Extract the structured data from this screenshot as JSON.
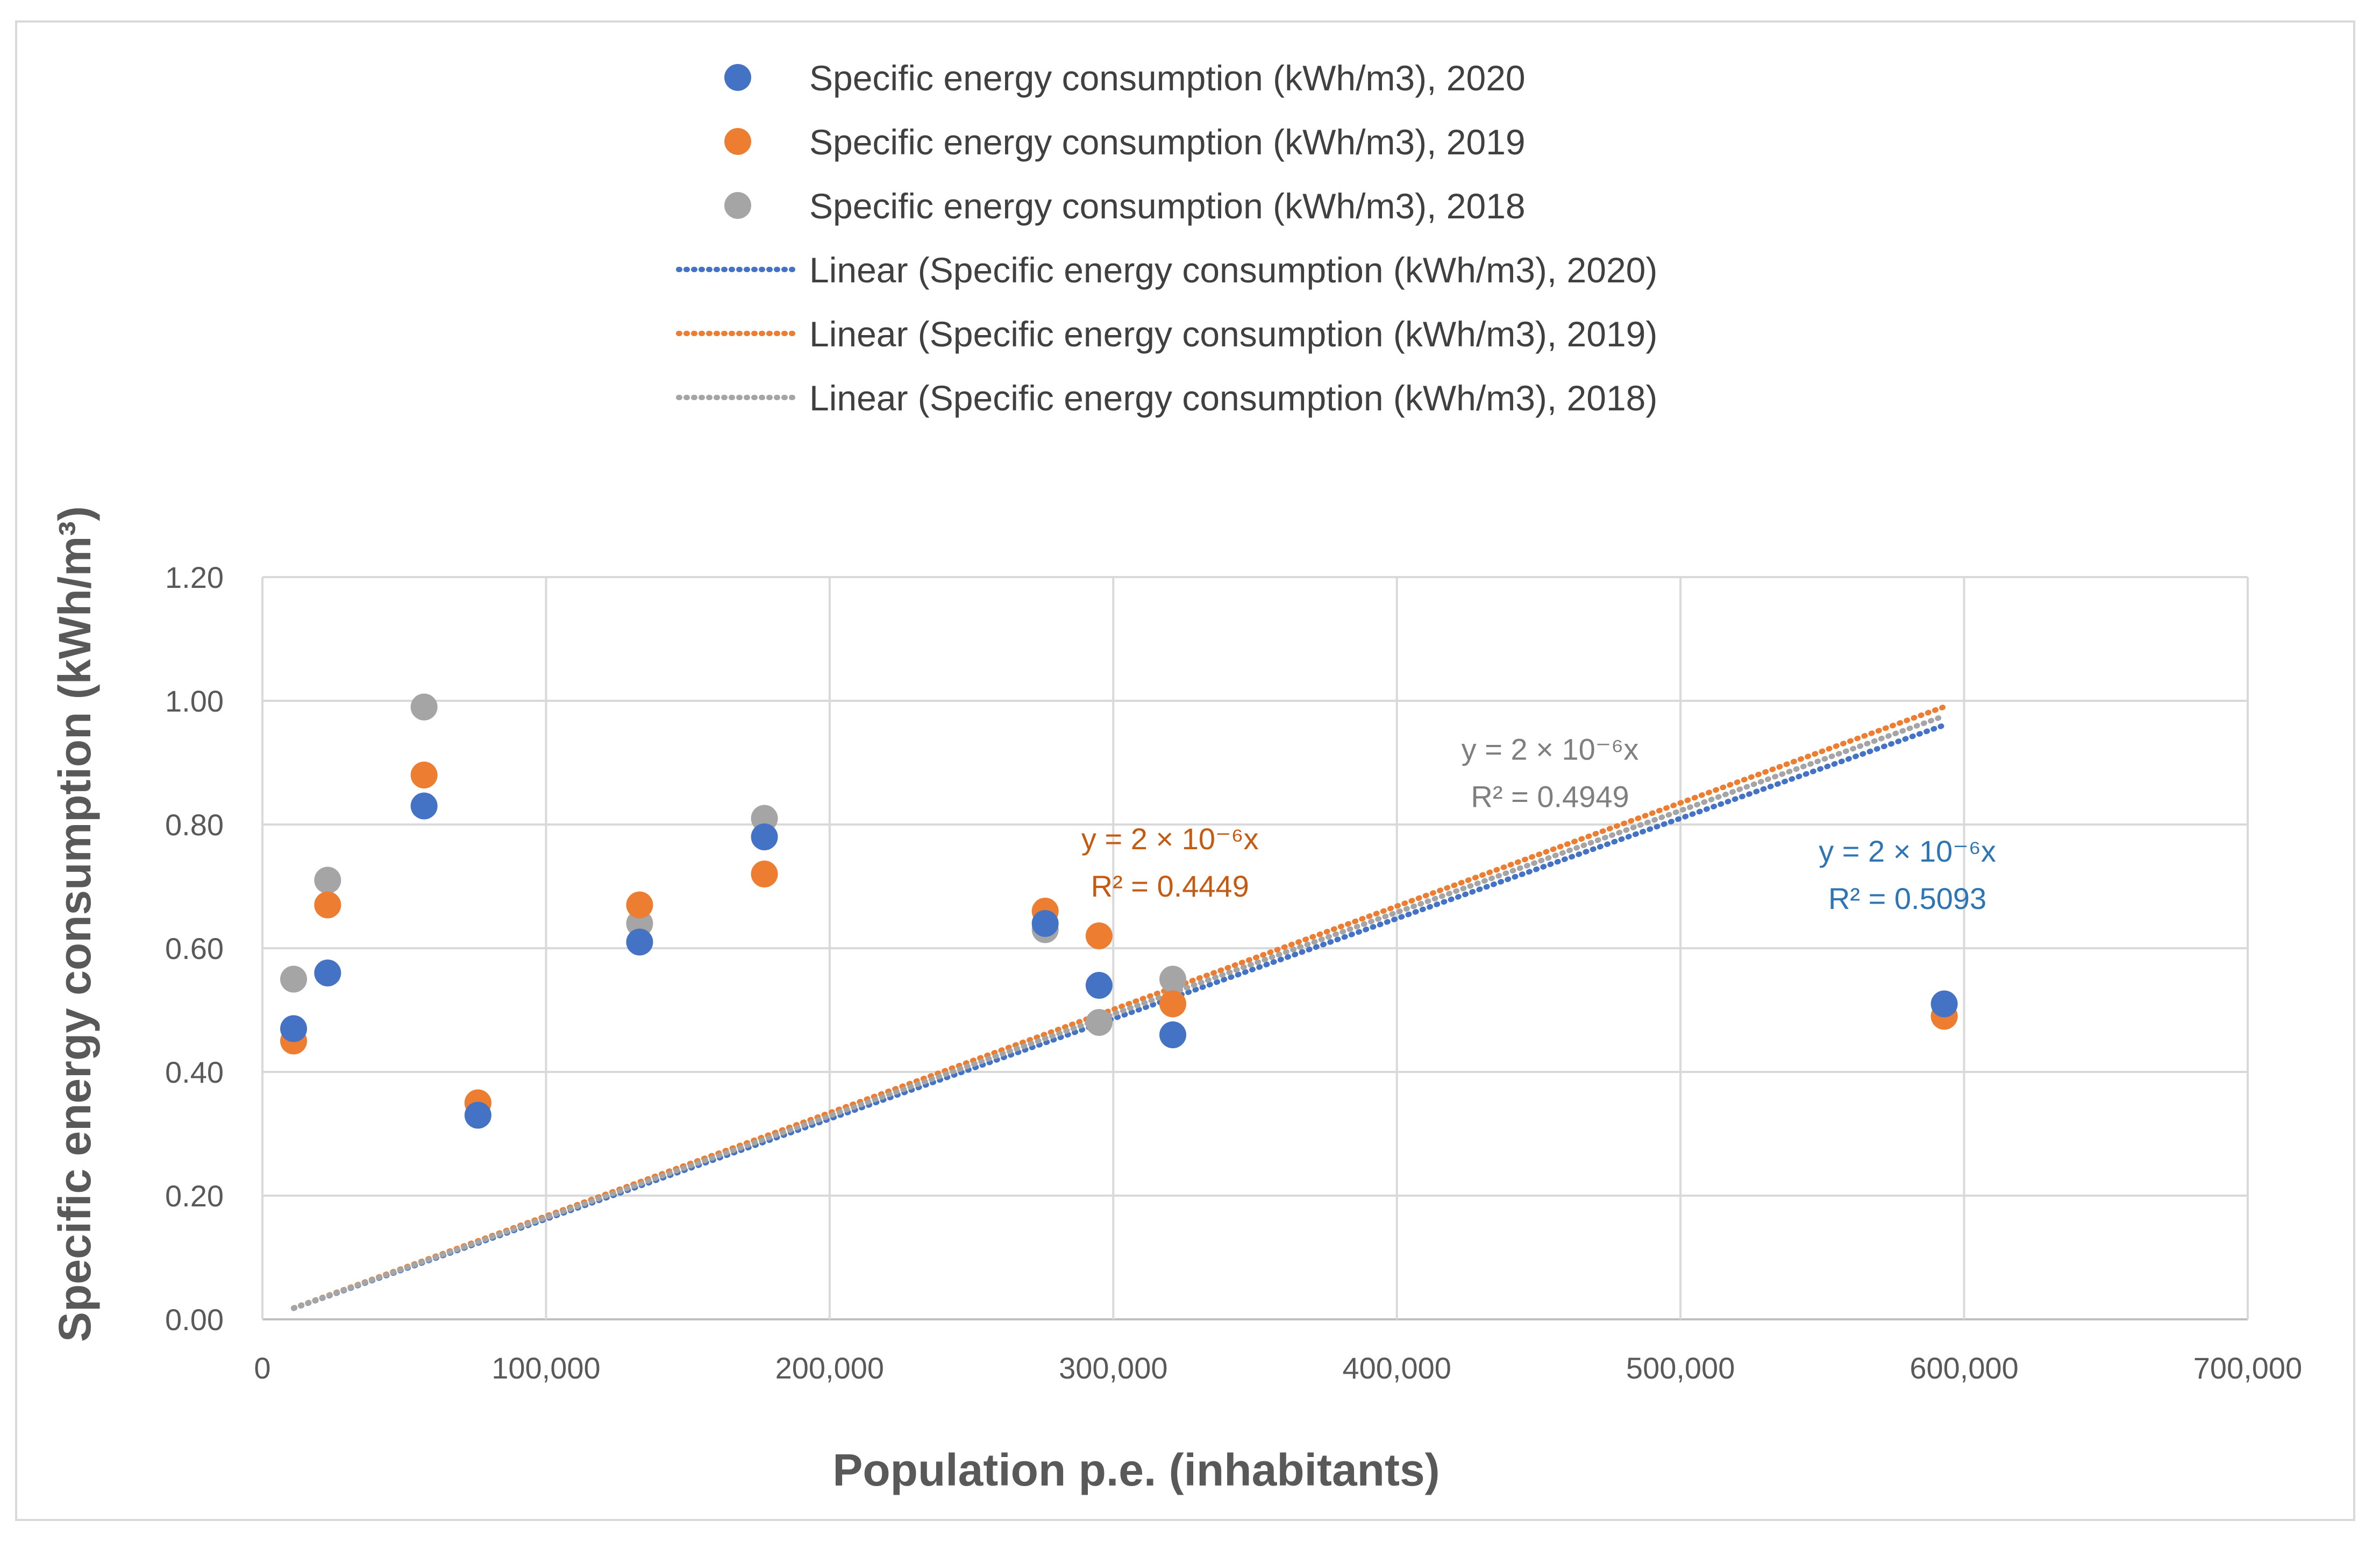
{
  "chart_data": {
    "type": "scatter",
    "title": "",
    "xlabel": "Population p.e. (inhabitants)",
    "ylabel": "Specific energy consumption (kWh/m³)",
    "xlim": [
      0,
      700000
    ],
    "ylim": [
      0,
      1.2
    ],
    "x_ticks": [
      "0",
      "100,000",
      "200,000",
      "300,000",
      "400,000",
      "500,000",
      "600,000",
      "700,000"
    ],
    "y_ticks": [
      "0.00",
      "0.20",
      "0.40",
      "0.60",
      "0.80",
      "1.00",
      "1.20"
    ],
    "grid": true,
    "legend_position": "top",
    "series": [
      {
        "name": "Specific energy consumption (kWh/m3), 2020",
        "color": "#4472c4",
        "points": [
          [
            11000,
            0.47
          ],
          [
            23000,
            0.56
          ],
          [
            57000,
            0.83
          ],
          [
            76000,
            0.33
          ],
          [
            133000,
            0.61
          ],
          [
            177000,
            0.78
          ],
          [
            276000,
            0.64
          ],
          [
            295000,
            0.54
          ],
          [
            321000,
            0.46
          ],
          [
            593000,
            0.51
          ]
        ]
      },
      {
        "name": "Specific energy consumption (kWh/m3), 2019",
        "color": "#ed7d31",
        "points": [
          [
            11000,
            0.45
          ],
          [
            23000,
            0.67
          ],
          [
            57000,
            0.88
          ],
          [
            76000,
            0.35
          ],
          [
            133000,
            0.67
          ],
          [
            177000,
            0.72
          ],
          [
            276000,
            0.66
          ],
          [
            295000,
            0.62
          ],
          [
            321000,
            0.51
          ],
          [
            593000,
            0.49
          ]
        ]
      },
      {
        "name": "Specific energy consumption (kWh/m3), 2018",
        "color": "#a5a5a5",
        "points": [
          [
            11000,
            0.55
          ],
          [
            23000,
            0.71
          ],
          [
            57000,
            0.99
          ],
          [
            76000,
            0.35
          ],
          [
            133000,
            0.64
          ],
          [
            177000,
            0.81
          ],
          [
            276000,
            0.63
          ],
          [
            295000,
            0.48
          ],
          [
            321000,
            0.55
          ],
          [
            593000,
            0.49
          ]
        ]
      }
    ],
    "trendlines": [
      {
        "name": "Linear (Specific energy consumption (kWh/m3), 2020)",
        "color": "#4472c4",
        "x_range": [
          11000,
          593000
        ],
        "slope": 1.62e-06,
        "equation": "y = 2 × 10⁻⁶x",
        "r2": "R² = 0.5093",
        "label_color": "#2e75b6"
      },
      {
        "name": "Linear (Specific energy consumption (kWh/m3), 2019)",
        "color": "#ed7d31",
        "x_range": [
          11000,
          593000
        ],
        "slope": 1.67e-06,
        "equation": "y = 2 × 10⁻⁶x",
        "r2": "R² = 0.4449",
        "label_color": "#c55a11"
      },
      {
        "name": "Linear (Specific energy consumption (kWh/m3), 2018)",
        "color": "#a5a5a5",
        "x_range": [
          11000,
          593000
        ],
        "slope": 1.645e-06,
        "equation": "y = 2 × 10⁻⁶x",
        "r2": "R² = 0.4949",
        "label_color": "#7f7f7f"
      }
    ]
  }
}
